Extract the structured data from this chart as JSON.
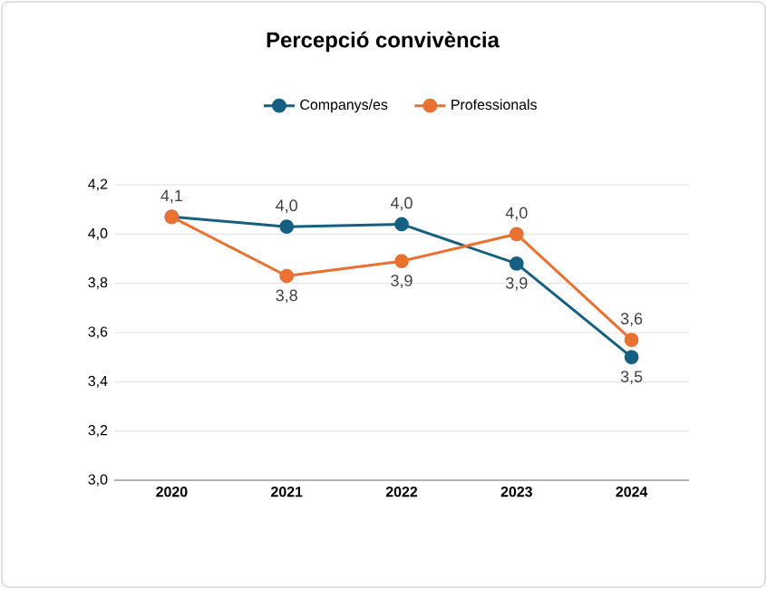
{
  "chart_data": {
    "type": "line",
    "title": "Percepció convivència",
    "categories": [
      "2020",
      "2021",
      "2022",
      "2023",
      "2024"
    ],
    "series": [
      {
        "name": "Companys/es",
        "color": "#156082",
        "values": [
          4.07,
          4.03,
          4.04,
          3.88,
          3.5
        ],
        "value_labels": [
          "4,1",
          "4,0",
          "4,0",
          "3,9",
          "3,5"
        ]
      },
      {
        "name": "Professionals",
        "color": "#e97132",
        "values": [
          4.07,
          3.83,
          3.89,
          4.0,
          3.57
        ],
        "value_labels": [
          null,
          "3,8",
          "3,9",
          "4,0",
          "3,6"
        ]
      }
    ],
    "ylim": [
      3.0,
      4.2
    ],
    "yticks": [
      {
        "value": 3.0,
        "label": "3,0"
      },
      {
        "value": 3.2,
        "label": "3,2"
      },
      {
        "value": 3.4,
        "label": "3,4"
      },
      {
        "value": 3.6,
        "label": "3,6"
      },
      {
        "value": 3.8,
        "label": "3,8"
      },
      {
        "value": 4.0,
        "label": "4,0"
      },
      {
        "value": 4.2,
        "label": "4,2"
      }
    ],
    "grid": "y",
    "legend": "top",
    "marker": "circle",
    "line_style": "solid"
  }
}
